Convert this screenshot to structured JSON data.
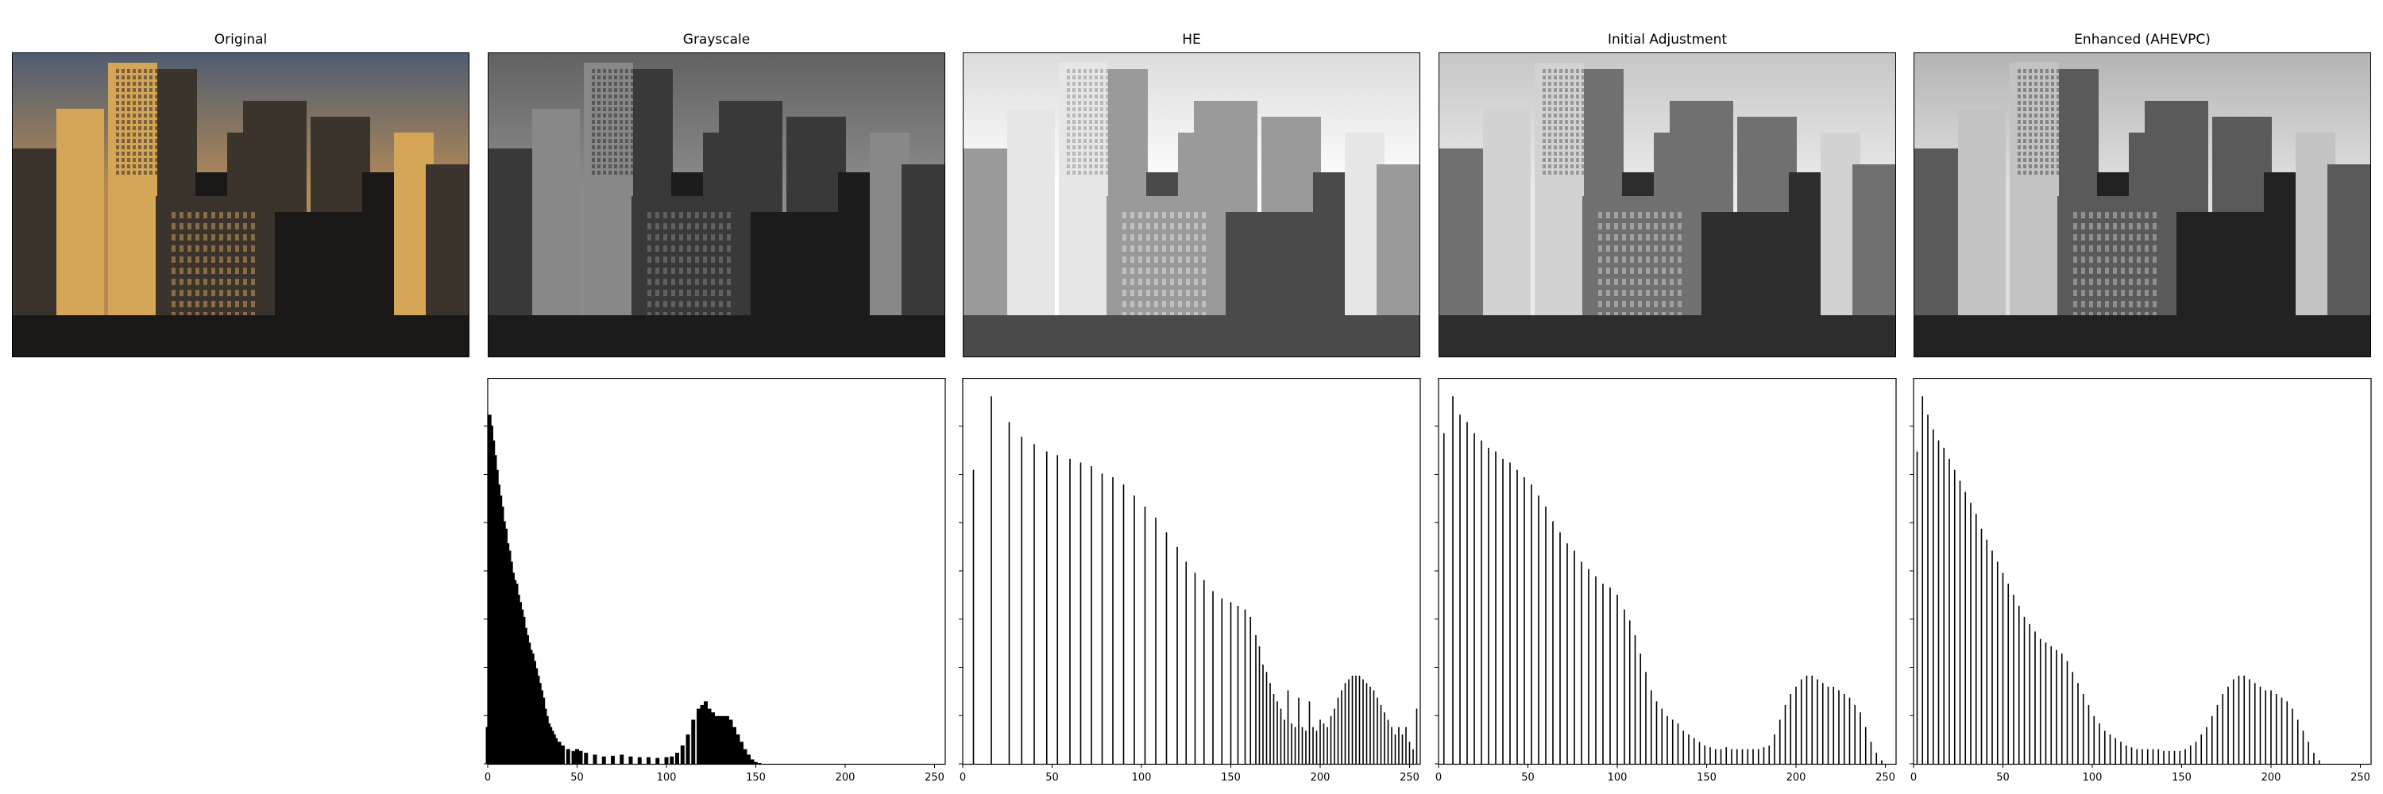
{
  "panels": [
    {
      "title": "Original",
      "colors": {
        "sky_top": "#4f5d72",
        "sky_bottom": "#b58a55",
        "building": "#3a342d",
        "lit": "#d5a657",
        "dark": "#1a1918"
      }
    },
    {
      "title": "Grayscale",
      "colors": {
        "sky_top": "#626262",
        "sky_bottom": "#8c8c8c",
        "building": "#393939",
        "lit": "#888888",
        "dark": "#1c1c1c"
      }
    },
    {
      "title": "HE",
      "colors": {
        "sky_top": "#dcdcdc",
        "sky_bottom": "#ffffff",
        "building": "#9a9a9a",
        "lit": "#e6e6e6",
        "dark": "#4a4a4a"
      }
    },
    {
      "title": "Initial Adjustment",
      "colors": {
        "sky_top": "#c6c6c6",
        "sky_bottom": "#ebebeb",
        "building": "#707070",
        "lit": "#d2d2d2",
        "dark": "#2d2d2d"
      }
    },
    {
      "title": "Enhanced (AHEVPC)",
      "colors": {
        "sky_top": "#b4b4b4",
        "sky_bottom": "#e1e1e1",
        "building": "#5a5a5a",
        "lit": "#c3c3c3",
        "dark": "#222222"
      }
    }
  ],
  "chart_data": [
    {
      "type": "bar",
      "panel": "Grayscale",
      "xlim": [
        0,
        256
      ],
      "xticks": [
        0,
        50,
        100,
        150,
        200,
        250
      ],
      "bins": [
        [
          0,
          10
        ],
        [
          1,
          95
        ],
        [
          2,
          92
        ],
        [
          3,
          88
        ],
        [
          4,
          84
        ],
        [
          5,
          80
        ],
        [
          6,
          76
        ],
        [
          7,
          73
        ],
        [
          8,
          70
        ],
        [
          9,
          66
        ],
        [
          10,
          64
        ],
        [
          11,
          60
        ],
        [
          12,
          58
        ],
        [
          13,
          55
        ],
        [
          14,
          52
        ],
        [
          15,
          50
        ],
        [
          16,
          49
        ],
        [
          17,
          46
        ],
        [
          18,
          44
        ],
        [
          19,
          42
        ],
        [
          20,
          40
        ],
        [
          21,
          37
        ],
        [
          22,
          35
        ],
        [
          23,
          33
        ],
        [
          24,
          31
        ],
        [
          25,
          30
        ],
        [
          26,
          28
        ],
        [
          27,
          26
        ],
        [
          28,
          24
        ],
        [
          29,
          22
        ],
        [
          30,
          20
        ],
        [
          31,
          18
        ],
        [
          32,
          15
        ],
        [
          33,
          13
        ],
        [
          34,
          11
        ],
        [
          35,
          10
        ],
        [
          36,
          9
        ],
        [
          37,
          8
        ],
        [
          38,
          7
        ],
        [
          40,
          6
        ],
        [
          42,
          5
        ],
        [
          45,
          4
        ],
        [
          48,
          3.5
        ],
        [
          50,
          4
        ],
        [
          52,
          3.5
        ],
        [
          55,
          3
        ],
        [
          60,
          2.5
        ],
        [
          65,
          2
        ],
        [
          70,
          2.2
        ],
        [
          75,
          2.5
        ],
        [
          80,
          2
        ],
        [
          85,
          1.8
        ],
        [
          90,
          1.8
        ],
        [
          95,
          1.6
        ],
        [
          100,
          1.8
        ],
        [
          103,
          2
        ],
        [
          106,
          3
        ],
        [
          109,
          5
        ],
        [
          112,
          8
        ],
        [
          115,
          12
        ],
        [
          118,
          15
        ],
        [
          120,
          16
        ],
        [
          122,
          17
        ],
        [
          124,
          15
        ],
        [
          126,
          14
        ],
        [
          128,
          13
        ],
        [
          130,
          13
        ],
        [
          132,
          13
        ],
        [
          134,
          13
        ],
        [
          136,
          12
        ],
        [
          138,
          10
        ],
        [
          140,
          8
        ],
        [
          142,
          6
        ],
        [
          144,
          4
        ],
        [
          146,
          2.5
        ],
        [
          148,
          1.2
        ],
        [
          150,
          0.5
        ],
        [
          152,
          0.2
        ]
      ]
    },
    {
      "type": "bar",
      "panel": "HE",
      "xlim": [
        0,
        256
      ],
      "xticks": [
        0,
        50,
        100,
        150,
        200,
        250
      ],
      "bins": [
        [
          6,
          80
        ],
        [
          16,
          100
        ],
        [
          26,
          93
        ],
        [
          33,
          89
        ],
        [
          40,
          87
        ],
        [
          47,
          85
        ],
        [
          53,
          84
        ],
        [
          60,
          83
        ],
        [
          66,
          82
        ],
        [
          72,
          81
        ],
        [
          78,
          79
        ],
        [
          84,
          78
        ],
        [
          90,
          76
        ],
        [
          96,
          73
        ],
        [
          102,
          70
        ],
        [
          108,
          67
        ],
        [
          114,
          63
        ],
        [
          120,
          59
        ],
        [
          125,
          55
        ],
        [
          130,
          52
        ],
        [
          135,
          50
        ],
        [
          140,
          47
        ],
        [
          145,
          45
        ],
        [
          150,
          44
        ],
        [
          154,
          43
        ],
        [
          158,
          42
        ],
        [
          161,
          40
        ],
        [
          164,
          35
        ],
        [
          166,
          32
        ],
        [
          168,
          27
        ],
        [
          170,
          25
        ],
        [
          172,
          22
        ],
        [
          174,
          19
        ],
        [
          176,
          17
        ],
        [
          178,
          15
        ],
        [
          180,
          12
        ],
        [
          182,
          20
        ],
        [
          184,
          11
        ],
        [
          186,
          10
        ],
        [
          188,
          18
        ],
        [
          190,
          10
        ],
        [
          192,
          9
        ],
        [
          194,
          17
        ],
        [
          196,
          10
        ],
        [
          198,
          9
        ],
        [
          200,
          12
        ],
        [
          202,
          11
        ],
        [
          204,
          10
        ],
        [
          206,
          13
        ],
        [
          208,
          15
        ],
        [
          210,
          18
        ],
        [
          212,
          20
        ],
        [
          214,
          22
        ],
        [
          216,
          23
        ],
        [
          218,
          24
        ],
        [
          220,
          24
        ],
        [
          222,
          24
        ],
        [
          224,
          23
        ],
        [
          226,
          22
        ],
        [
          228,
          21
        ],
        [
          230,
          20
        ],
        [
          232,
          18
        ],
        [
          234,
          16
        ],
        [
          236,
          14
        ],
        [
          238,
          12
        ],
        [
          240,
          10
        ],
        [
          242,
          8
        ],
        [
          244,
          10
        ],
        [
          246,
          8
        ],
        [
          248,
          10
        ],
        [
          250,
          6
        ],
        [
          252,
          4
        ],
        [
          254,
          15
        ]
      ]
    },
    {
      "type": "bar",
      "panel": "Initial Adjustment",
      "xlim": [
        0,
        256
      ],
      "xticks": [
        0,
        50,
        100,
        150,
        200,
        250
      ],
      "bins": [
        [
          3,
          90
        ],
        [
          8,
          100
        ],
        [
          12,
          95
        ],
        [
          16,
          93
        ],
        [
          20,
          90
        ],
        [
          24,
          88
        ],
        [
          28,
          86
        ],
        [
          32,
          85
        ],
        [
          36,
          83
        ],
        [
          40,
          82
        ],
        [
          44,
          80
        ],
        [
          48,
          78
        ],
        [
          52,
          76
        ],
        [
          56,
          73
        ],
        [
          60,
          70
        ],
        [
          64,
          66
        ],
        [
          68,
          63
        ],
        [
          72,
          60
        ],
        [
          76,
          58
        ],
        [
          80,
          55
        ],
        [
          84,
          53
        ],
        [
          88,
          51
        ],
        [
          92,
          49
        ],
        [
          96,
          48
        ],
        [
          100,
          46
        ],
        [
          104,
          42
        ],
        [
          107,
          39
        ],
        [
          110,
          35
        ],
        [
          113,
          30
        ],
        [
          116,
          25
        ],
        [
          119,
          20
        ],
        [
          122,
          17
        ],
        [
          125,
          15
        ],
        [
          128,
          13
        ],
        [
          131,
          12
        ],
        [
          134,
          11
        ],
        [
          137,
          9
        ],
        [
          140,
          8
        ],
        [
          143,
          7
        ],
        [
          146,
          6
        ],
        [
          149,
          5
        ],
        [
          152,
          4.5
        ],
        [
          155,
          4
        ],
        [
          158,
          4
        ],
        [
          161,
          4.5
        ],
        [
          164,
          4
        ],
        [
          167,
          4
        ],
        [
          170,
          4
        ],
        [
          173,
          4
        ],
        [
          176,
          4
        ],
        [
          179,
          4
        ],
        [
          182,
          4.5
        ],
        [
          185,
          5
        ],
        [
          188,
          8
        ],
        [
          191,
          12
        ],
        [
          194,
          16
        ],
        [
          197,
          19
        ],
        [
          200,
          21
        ],
        [
          203,
          23
        ],
        [
          206,
          24
        ],
        [
          209,
          24
        ],
        [
          212,
          23
        ],
        [
          215,
          22
        ],
        [
          218,
          21
        ],
        [
          221,
          21
        ],
        [
          224,
          20
        ],
        [
          227,
          19
        ],
        [
          230,
          18
        ],
        [
          233,
          16
        ],
        [
          236,
          14
        ],
        [
          239,
          10
        ],
        [
          242,
          6
        ],
        [
          245,
          3
        ],
        [
          248,
          1
        ]
      ]
    },
    {
      "type": "bar",
      "panel": "Enhanced (AHEVPC)",
      "xlim": [
        0,
        256
      ],
      "xticks": [
        0,
        50,
        100,
        150,
        200,
        250
      ],
      "bins": [
        [
          2,
          85
        ],
        [
          5,
          100
        ],
        [
          8,
          95
        ],
        [
          11,
          91
        ],
        [
          14,
          88
        ],
        [
          17,
          86
        ],
        [
          20,
          83
        ],
        [
          23,
          80
        ],
        [
          26,
          77
        ],
        [
          29,
          74
        ],
        [
          32,
          71
        ],
        [
          35,
          68
        ],
        [
          38,
          64
        ],
        [
          41,
          61
        ],
        [
          44,
          58
        ],
        [
          47,
          55
        ],
        [
          50,
          52
        ],
        [
          53,
          49
        ],
        [
          56,
          46
        ],
        [
          59,
          43
        ],
        [
          62,
          40
        ],
        [
          65,
          38
        ],
        [
          68,
          36
        ],
        [
          71,
          34
        ],
        [
          74,
          33
        ],
        [
          77,
          32
        ],
        [
          80,
          31
        ],
        [
          83,
          30
        ],
        [
          86,
          28
        ],
        [
          89,
          25
        ],
        [
          92,
          22
        ],
        [
          95,
          19
        ],
        [
          98,
          16
        ],
        [
          101,
          13
        ],
        [
          104,
          11
        ],
        [
          107,
          9
        ],
        [
          110,
          8
        ],
        [
          113,
          7
        ],
        [
          116,
          6
        ],
        [
          119,
          5
        ],
        [
          122,
          4.5
        ],
        [
          125,
          4
        ],
        [
          128,
          4
        ],
        [
          131,
          4
        ],
        [
          134,
          4
        ],
        [
          137,
          4
        ],
        [
          140,
          3.5
        ],
        [
          143,
          3.5
        ],
        [
          146,
          3.5
        ],
        [
          149,
          3.5
        ],
        [
          152,
          4
        ],
        [
          155,
          5
        ],
        [
          158,
          6
        ],
        [
          161,
          8
        ],
        [
          164,
          10
        ],
        [
          167,
          13
        ],
        [
          170,
          16
        ],
        [
          173,
          19
        ],
        [
          176,
          21
        ],
        [
          179,
          23
        ],
        [
          182,
          24
        ],
        [
          185,
          24
        ],
        [
          188,
          23
        ],
        [
          191,
          22
        ],
        [
          194,
          21
        ],
        [
          197,
          20
        ],
        [
          200,
          20
        ],
        [
          203,
          19
        ],
        [
          206,
          18
        ],
        [
          209,
          17
        ],
        [
          212,
          15
        ],
        [
          215,
          12
        ],
        [
          218,
          9
        ],
        [
          221,
          6
        ],
        [
          224,
          3
        ],
        [
          227,
          1
        ]
      ]
    }
  ]
}
